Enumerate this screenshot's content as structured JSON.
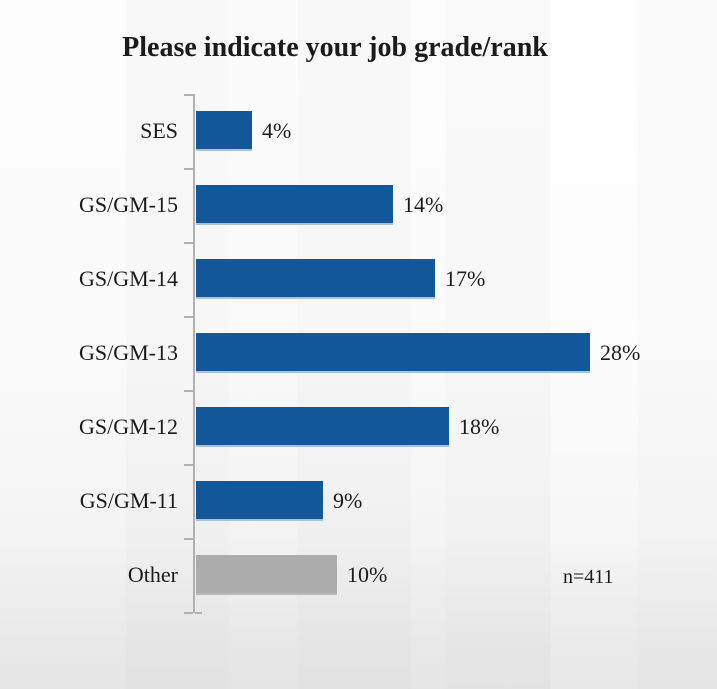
{
  "title": "Please indicate your job grade/rank",
  "annotation": "n=411",
  "colors": {
    "bar_blue": "#14589C",
    "bar_gray": "#ACACAC",
    "axis_gray": "#B1B1B1",
    "text": "#1A1A1A",
    "background_bottom": "#E8E8E8"
  },
  "chart_data": {
    "type": "bar",
    "orientation": "horizontal",
    "title": "Please indicate your job grade/rank",
    "categories": [
      "SES",
      "GS/GM-15",
      "GS/GM-14",
      "GS/GM-13",
      "GS/GM-12",
      "GS/GM-11",
      "Other"
    ],
    "values": [
      4,
      14,
      17,
      28,
      18,
      9,
      10
    ],
    "value_labels": [
      "4%",
      "14%",
      "17%",
      "28%",
      "18%",
      "9%",
      "10%"
    ],
    "unit": "percent",
    "annotation": "n=411",
    "xlabel": "",
    "ylabel": "",
    "xlim": [
      0,
      30
    ],
    "grid": false,
    "legend": false,
    "bar_color_default": "#14589C",
    "bar_color_other": "#ACACAC",
    "highlight_other_category": true
  }
}
